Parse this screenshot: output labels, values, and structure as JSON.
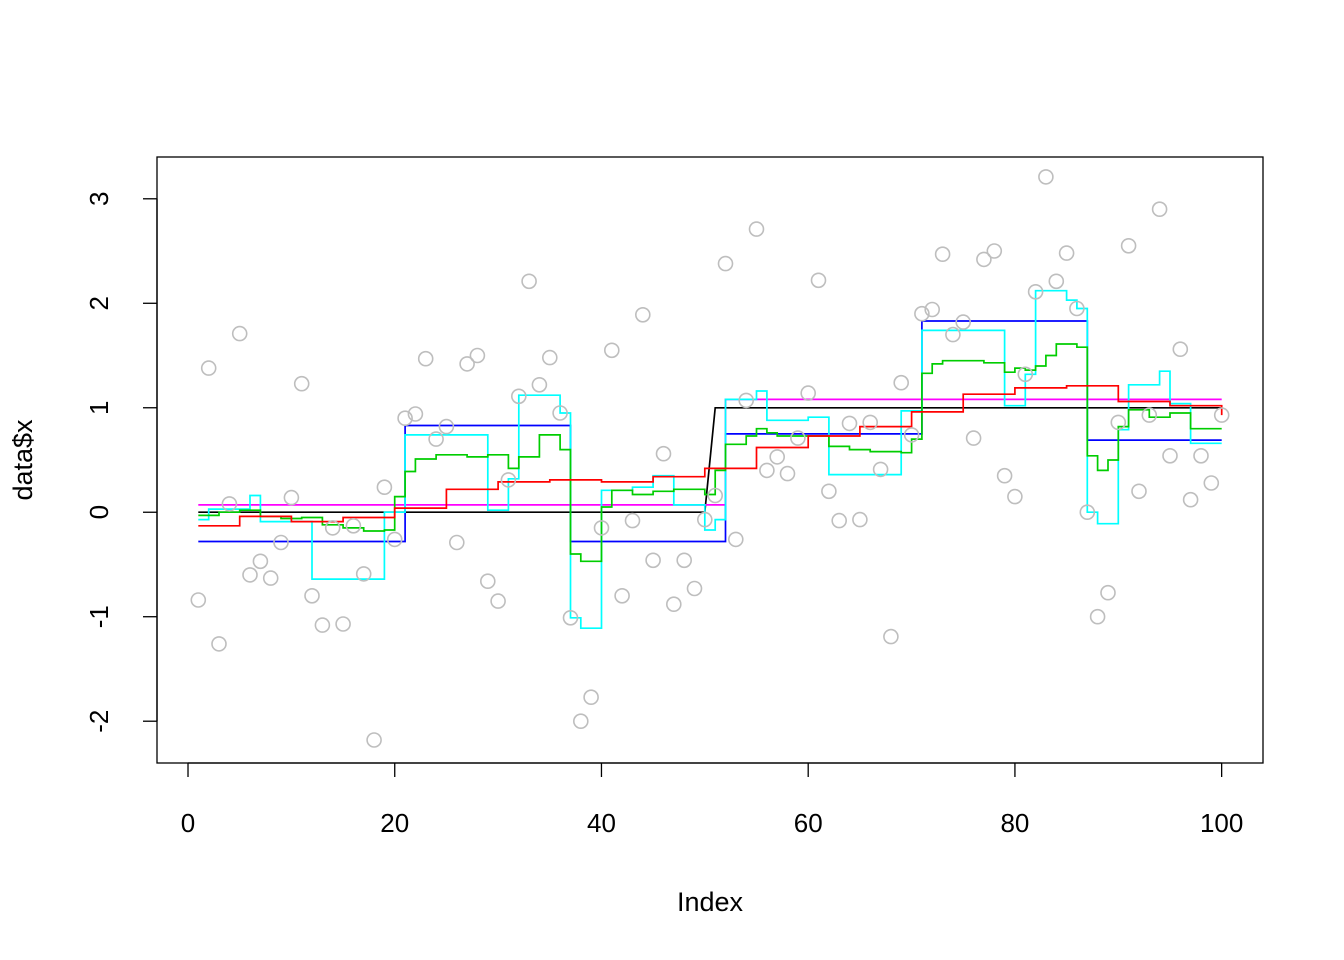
{
  "chart_data": {
    "type": "scatter",
    "title": "",
    "xlabel": "Index",
    "ylabel": "data$x",
    "xlim": [
      -3.0,
      104.0
    ],
    "ylim": [
      -2.4,
      3.4
    ],
    "xticks": [
      0,
      20,
      40,
      60,
      80,
      100
    ],
    "yticks": [
      -2,
      -1,
      0,
      1,
      2,
      3
    ],
    "xtick_labels": [
      "0",
      "20",
      "40",
      "60",
      "80",
      "100"
    ],
    "ytick_labels": [
      "-2",
      "-1",
      "0",
      "1",
      "2",
      "3"
    ],
    "grid": false,
    "legend": "none",
    "points": {
      "color": "#bebebe",
      "x": [
        1,
        2,
        3,
        4,
        5,
        6,
        7,
        8,
        9,
        10,
        11,
        12,
        13,
        14,
        15,
        16,
        17,
        18,
        19,
        20,
        21,
        22,
        23,
        24,
        25,
        26,
        27,
        28,
        29,
        30,
        31,
        32,
        33,
        34,
        35,
        36,
        37,
        38,
        39,
        40,
        41,
        42,
        43,
        44,
        45,
        46,
        47,
        48,
        49,
        50,
        51,
        52,
        53,
        54,
        55,
        56,
        57,
        58,
        59,
        60,
        61,
        62,
        63,
        64,
        65,
        66,
        67,
        68,
        69,
        70,
        71,
        72,
        73,
        74,
        75,
        76,
        77,
        78,
        79,
        80,
        81,
        82,
        83,
        84,
        85,
        86,
        87,
        88,
        89,
        90,
        91,
        92,
        93,
        94,
        95,
        96,
        97,
        98,
        99,
        100
      ],
      "y": [
        -0.84,
        1.38,
        -1.26,
        0.08,
        1.71,
        -0.6,
        -0.47,
        -0.63,
        -0.29,
        0.14,
        1.23,
        -0.8,
        -1.08,
        -0.15,
        -1.07,
        -0.13,
        -0.59,
        -2.18,
        0.24,
        -0.26,
        0.9,
        0.94,
        1.47,
        0.7,
        0.82,
        -0.29,
        1.42,
        1.5,
        -0.66,
        -0.85,
        0.31,
        1.11,
        2.21,
        1.22,
        1.48,
        0.95,
        -1.01,
        -2.0,
        -1.77,
        -0.15,
        1.55,
        -0.8,
        -0.08,
        1.89,
        -0.46,
        0.56,
        -0.88,
        -0.46,
        -0.73,
        -0.07,
        0.16,
        2.38,
        -0.26,
        1.07,
        2.71,
        0.4,
        0.53,
        0.37,
        0.71,
        1.14,
        2.22,
        0.2,
        -0.08,
        0.85,
        -0.07,
        0.86,
        0.41,
        -1.19,
        1.24,
        0.74,
        1.9,
        1.94,
        2.47,
        1.7,
        1.82,
        0.71,
        2.42,
        2.5,
        0.35,
        0.15,
        1.32,
        2.11,
        3.21,
        2.21,
        2.48,
        1.95,
        0.0,
        -1.0,
        -0.77,
        0.86,
        2.55,
        0.2,
        0.93,
        2.9,
        0.54,
        1.56,
        0.12,
        0.54,
        0.28,
        0.93
      ]
    },
    "series": [
      {
        "color": "#000000",
        "style": "line",
        "x": [
          1,
          50,
          51,
          100
        ],
        "y": [
          0,
          0,
          1,
          1
        ]
      },
      {
        "color": "#0000ff",
        "style": "step",
        "x": [
          1,
          21,
          37,
          52,
          71,
          87,
          100
        ],
        "y": [
          -0.28,
          0.83,
          -0.28,
          0.75,
          1.83,
          0.69,
          0.69
        ]
      },
      {
        "color": "#ff00ff",
        "style": "step",
        "x": [
          1,
          52,
          100
        ],
        "y": [
          0.07,
          1.08,
          1.08
        ]
      },
      {
        "color": "#00ffff",
        "style": "step",
        "x": [
          1,
          2,
          6,
          7,
          12,
          19,
          21,
          29,
          31,
          32,
          36,
          37,
          38,
          40,
          43,
          45,
          47,
          50,
          51,
          52,
          55,
          56,
          60,
          62,
          69,
          71,
          79,
          81,
          82,
          85,
          86,
          87,
          88,
          90,
          91,
          94,
          95,
          97,
          100
        ],
        "y": [
          -0.07,
          0.03,
          0.16,
          -0.09,
          -0.64,
          0.0,
          0.74,
          0.02,
          0.32,
          1.12,
          0.95,
          -1.01,
          -1.11,
          0.21,
          0.24,
          0.35,
          0.07,
          -0.17,
          -0.07,
          1.08,
          1.16,
          0.88,
          0.91,
          0.36,
          0.97,
          1.74,
          1.02,
          1.32,
          2.12,
          2.03,
          1.95,
          0.0,
          -0.11,
          0.79,
          1.22,
          1.35,
          1.04,
          0.66,
          0.66
        ]
      },
      {
        "color": "#00cd00",
        "style": "step",
        "x": [
          1,
          3,
          5,
          7,
          9,
          11,
          13,
          15,
          17,
          19,
          20,
          21,
          22,
          24,
          27,
          29,
          31,
          32,
          34,
          36,
          37,
          38,
          40,
          41,
          43,
          45,
          47,
          50,
          51,
          52,
          54,
          55,
          56,
          57,
          60,
          62,
          64,
          66,
          69,
          70,
          71,
          72,
          73,
          77,
          79,
          80,
          81,
          82,
          83,
          84,
          86,
          87,
          88,
          89,
          90,
          91,
          93,
          95,
          97,
          100
        ],
        "y": [
          -0.03,
          0.0,
          0.02,
          -0.04,
          -0.06,
          -0.05,
          -0.12,
          -0.15,
          -0.18,
          -0.17,
          0.15,
          0.39,
          0.51,
          0.55,
          0.53,
          0.55,
          0.42,
          0.53,
          0.74,
          0.6,
          -0.4,
          -0.47,
          0.05,
          0.21,
          0.17,
          0.2,
          0.22,
          0.17,
          0.4,
          0.65,
          0.73,
          0.8,
          0.76,
          0.73,
          0.73,
          0.63,
          0.6,
          0.58,
          0.57,
          0.7,
          1.33,
          1.42,
          1.45,
          1.43,
          1.34,
          1.38,
          1.36,
          1.4,
          1.5,
          1.61,
          1.58,
          0.54,
          0.4,
          0.5,
          0.82,
          0.98,
          0.91,
          0.95,
          0.8,
          0.8
        ]
      },
      {
        "color": "#ff0000",
        "style": "step",
        "x": [
          1,
          5,
          10,
          15,
          20,
          25,
          30,
          35,
          40,
          45,
          50,
          55,
          60,
          65,
          70,
          75,
          80,
          85,
          90,
          95,
          100
        ],
        "y": [
          -0.13,
          -0.04,
          -0.09,
          -0.05,
          0.04,
          0.22,
          0.29,
          0.31,
          0.29,
          0.34,
          0.42,
          0.62,
          0.73,
          0.82,
          0.96,
          1.13,
          1.19,
          1.21,
          1.06,
          1.02,
          0.93
        ]
      }
    ]
  }
}
